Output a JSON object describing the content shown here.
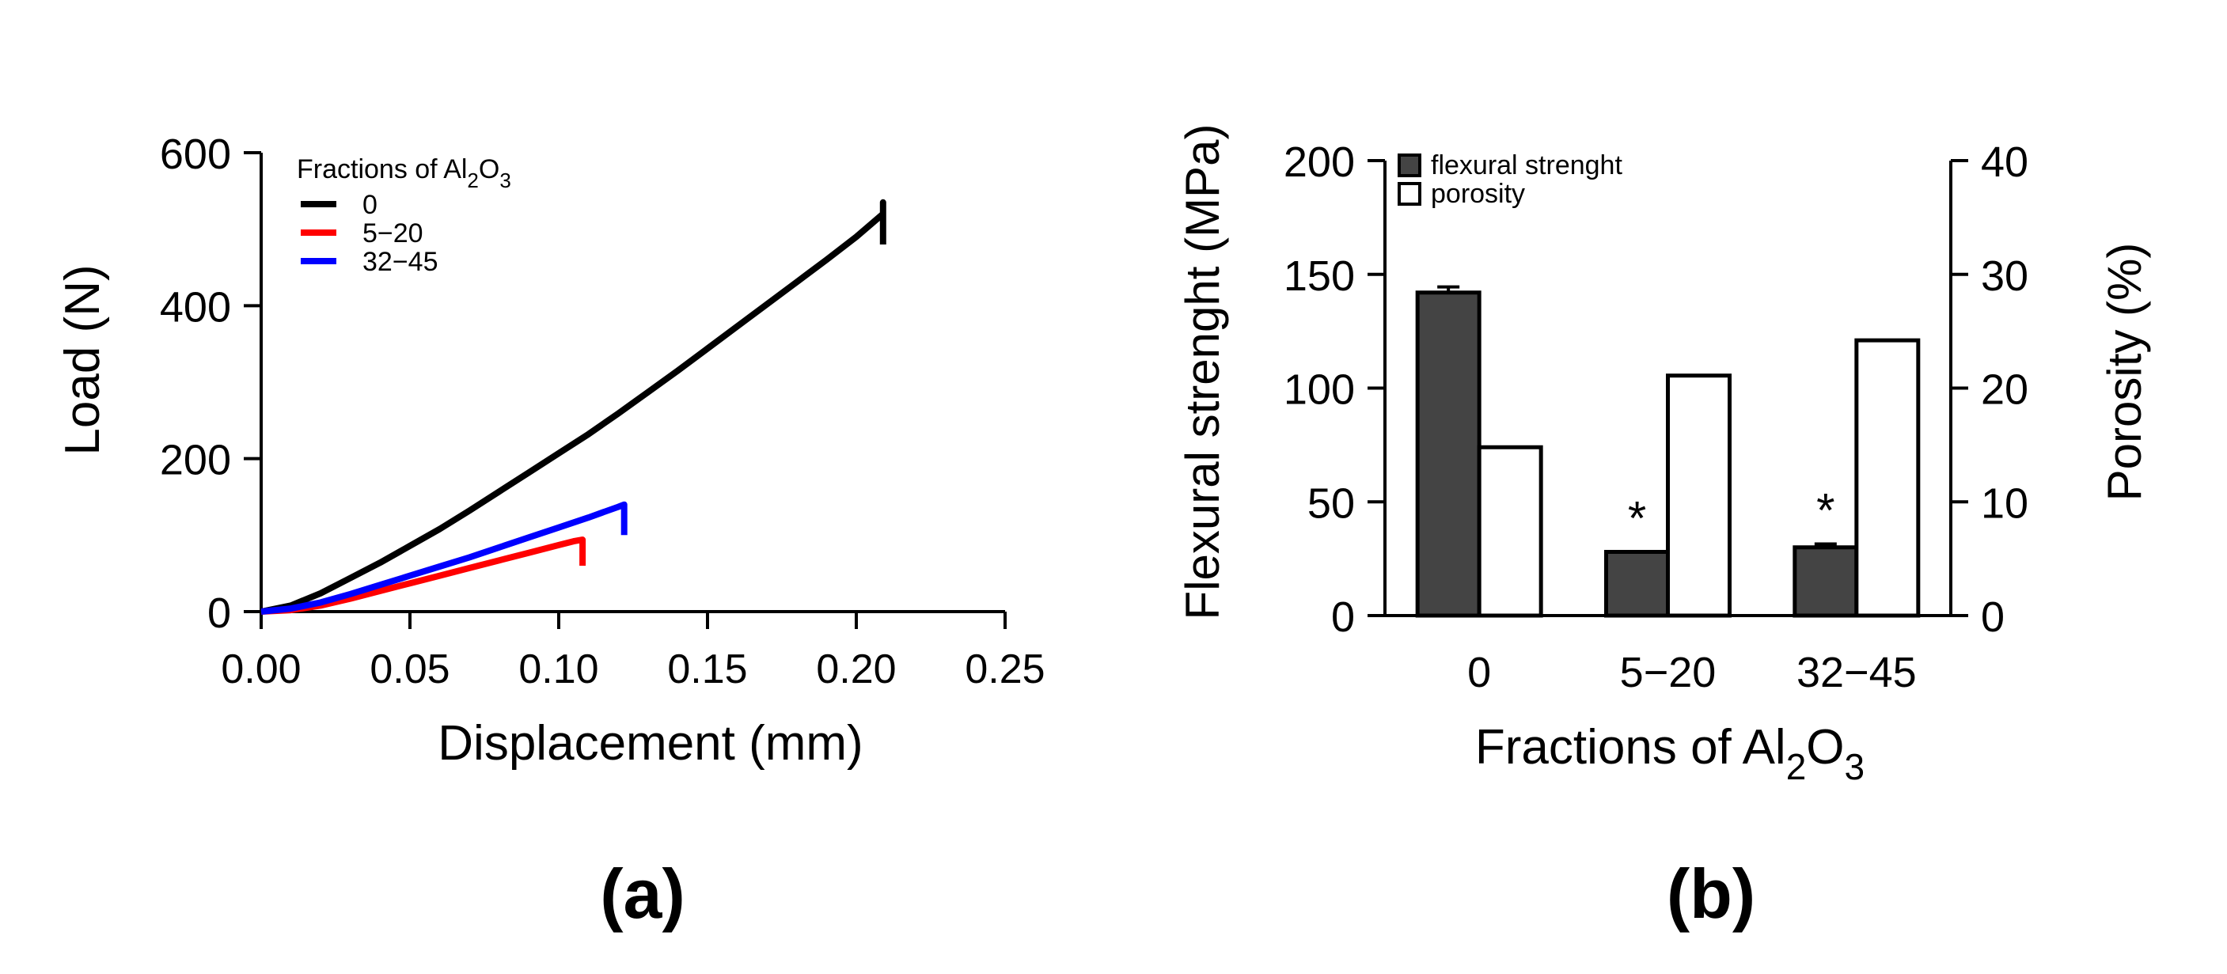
{
  "chart_data": [
    {
      "type": "line",
      "panel_label": "(a)",
      "title": "",
      "xlabel": "Displacement (mm)",
      "ylabel": "Load (N)",
      "xlim": [
        0,
        0.25
      ],
      "ylim": [
        0,
        600
      ],
      "x_ticks": [
        "0.00",
        "0.05",
        "0.10",
        "0.15",
        "0.20",
        "0.25"
      ],
      "y_ticks": [
        "0",
        "200",
        "400",
        "600"
      ],
      "grid": false,
      "legend": {
        "title_prefix": "Fractions of Al",
        "title_sub1": "2",
        "title_mid": "O",
        "title_sub2": "3",
        "placement": "top-left"
      },
      "series": [
        {
          "name": "0",
          "color": "#000000",
          "x": [
            0.0,
            0.01,
            0.02,
            0.03,
            0.04,
            0.05,
            0.06,
            0.07,
            0.08,
            0.09,
            0.1,
            0.11,
            0.12,
            0.13,
            0.14,
            0.15,
            0.16,
            0.17,
            0.18,
            0.19,
            0.2,
            0.209,
            0.209,
            0.209
          ],
          "y": [
            0,
            8,
            24,
            44,
            64,
            86,
            108,
            132,
            157,
            182,
            207,
            232,
            259,
            287,
            315,
            344,
            373,
            402,
            431,
            460,
            490,
            520,
            535,
            480
          ]
        },
        {
          "name": "5−20",
          "color": "#ff0000",
          "x": [
            0.0,
            0.01,
            0.02,
            0.03,
            0.04,
            0.05,
            0.06,
            0.07,
            0.08,
            0.09,
            0.1,
            0.105,
            0.108,
            0.108,
            0.108
          ],
          "y": [
            0,
            2,
            8,
            17,
            27,
            37,
            47,
            57,
            67,
            77,
            87,
            92,
            94,
            85,
            60
          ]
        },
        {
          "name": "32−45",
          "color": "#0000ff",
          "x": [
            0.0,
            0.01,
            0.02,
            0.03,
            0.04,
            0.05,
            0.06,
            0.07,
            0.08,
            0.09,
            0.1,
            0.11,
            0.115,
            0.12,
            0.122,
            0.122,
            0.122
          ],
          "y": [
            0,
            4,
            12,
            23,
            35,
            47,
            59,
            71,
            84,
            97,
            110,
            123,
            130,
            137,
            140,
            125,
            100
          ]
        }
      ]
    },
    {
      "type": "bar",
      "panel_label": "(b)",
      "title": "",
      "xlabel_prefix": "Fractions of Al",
      "xlabel_sub1": "2",
      "xlabel_mid": "O",
      "xlabel_sub2": "3",
      "ylabel": "Flexural strenght (MPa)",
      "y2label": "Porosity (%)",
      "categories": [
        "0",
        "5−20",
        "32−45"
      ],
      "ylim": [
        0,
        200
      ],
      "y2lim": [
        0,
        40
      ],
      "y_ticks": [
        "0",
        "50",
        "100",
        "150",
        "200"
      ],
      "y2_ticks": [
        "0",
        "10",
        "20",
        "30",
        "40"
      ],
      "grid": false,
      "series": [
        {
          "name": "flexural strenght",
          "axis": "left",
          "color": "#444444",
          "values": [
            142,
            28,
            30
          ],
          "errors": [
            2.5,
            0,
            1.5
          ]
        },
        {
          "name": "porosity",
          "axis": "right",
          "color": "#ffffff",
          "values": [
            14.8,
            21.1,
            24.2
          ]
        }
      ],
      "annotations": [
        {
          "category_index": 1,
          "text": "*"
        },
        {
          "category_index": 2,
          "text": "*"
        }
      ],
      "legend_placement": "top-left"
    }
  ]
}
